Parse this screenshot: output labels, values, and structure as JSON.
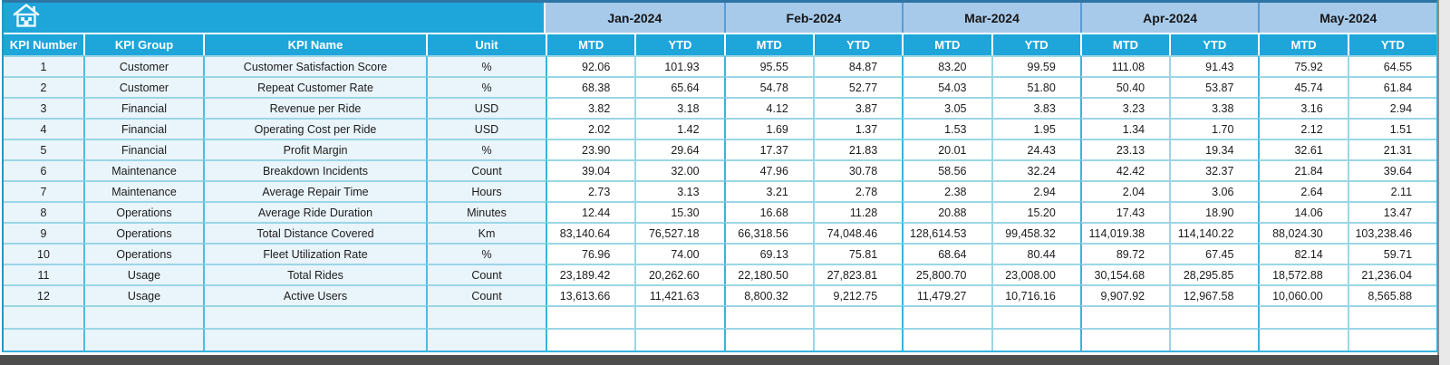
{
  "table": {
    "left_headers": [
      "KPI Number",
      "KPI Group",
      "KPI Name",
      "Unit"
    ],
    "months": [
      "Jan-2024",
      "Feb-2024",
      "Mar-2024",
      "Apr-2024",
      "May-2024"
    ],
    "sub_headers": [
      "MTD",
      "YTD"
    ],
    "rows": [
      {
        "number": "1",
        "group": "Customer",
        "name": "Customer Satisfaction Score",
        "unit": "%",
        "values": [
          "92.06",
          "101.93",
          "95.55",
          "84.87",
          "83.20",
          "99.59",
          "111.08",
          "91.43",
          "75.92",
          "64.55"
        ]
      },
      {
        "number": "2",
        "group": "Customer",
        "name": "Repeat Customer Rate",
        "unit": "%",
        "values": [
          "68.38",
          "65.64",
          "54.78",
          "52.77",
          "54.03",
          "51.80",
          "50.40",
          "53.87",
          "45.74",
          "61.84"
        ]
      },
      {
        "number": "3",
        "group": "Financial",
        "name": "Revenue per Ride",
        "unit": "USD",
        "values": [
          "3.82",
          "3.18",
          "4.12",
          "3.87",
          "3.05",
          "3.83",
          "3.23",
          "3.38",
          "3.16",
          "2.94"
        ]
      },
      {
        "number": "4",
        "group": "Financial",
        "name": "Operating Cost per Ride",
        "unit": "USD",
        "values": [
          "2.02",
          "1.42",
          "1.69",
          "1.37",
          "1.53",
          "1.95",
          "1.34",
          "1.70",
          "2.12",
          "1.51"
        ]
      },
      {
        "number": "5",
        "group": "Financial",
        "name": "Profit Margin",
        "unit": "%",
        "values": [
          "23.90",
          "29.64",
          "17.37",
          "21.83",
          "20.01",
          "24.43",
          "23.13",
          "19.34",
          "32.61",
          "21.31"
        ]
      },
      {
        "number": "6",
        "group": "Maintenance",
        "name": "Breakdown Incidents",
        "unit": "Count",
        "values": [
          "39.04",
          "32.00",
          "47.96",
          "30.78",
          "58.56",
          "32.24",
          "42.42",
          "32.37",
          "21.84",
          "39.64"
        ]
      },
      {
        "number": "7",
        "group": "Maintenance",
        "name": "Average Repair Time",
        "unit": "Hours",
        "values": [
          "2.73",
          "3.13",
          "3.21",
          "2.78",
          "2.38",
          "2.94",
          "2.04",
          "3.06",
          "2.64",
          "2.11"
        ]
      },
      {
        "number": "8",
        "group": "Operations",
        "name": "Average Ride Duration",
        "unit": "Minutes",
        "values": [
          "12.44",
          "15.30",
          "16.68",
          "11.28",
          "20.88",
          "15.20",
          "17.43",
          "18.90",
          "14.06",
          "13.47"
        ]
      },
      {
        "number": "9",
        "group": "Operations",
        "name": "Total Distance Covered",
        "unit": "Km",
        "values": [
          "83,140.64",
          "76,527.18",
          "66,318.56",
          "74,048.46",
          "128,614.53",
          "99,458.32",
          "114,019.38",
          "114,140.22",
          "88,024.30",
          "103,238.46"
        ]
      },
      {
        "number": "10",
        "group": "Operations",
        "name": "Fleet Utilization Rate",
        "unit": "%",
        "values": [
          "76.96",
          "74.00",
          "69.13",
          "75.81",
          "68.64",
          "80.44",
          "89.72",
          "67.45",
          "82.14",
          "59.71"
        ]
      },
      {
        "number": "11",
        "group": "Usage",
        "name": "Total Rides",
        "unit": "Count",
        "values": [
          "23,189.42",
          "20,262.60",
          "22,180.50",
          "27,823.81",
          "25,800.70",
          "23,008.00",
          "30,154.68",
          "28,295.85",
          "18,572.88",
          "21,236.04"
        ]
      },
      {
        "number": "12",
        "group": "Usage",
        "name": "Active Users",
        "unit": "Count",
        "values": [
          "13,613.66",
          "11,421.63",
          "8,800.32",
          "9,212.75",
          "11,479.27",
          "10,716.16",
          "9,907.92",
          "12,967.58",
          "10,060.00",
          "8,565.88"
        ]
      }
    ],
    "empty_rows": 2
  },
  "icons": {
    "home": "home-icon"
  },
  "colors": {
    "header_cyan": "#1EA5DA",
    "month_band": "#A7CAEA",
    "row_tint": "#E9F4FB",
    "grid_light": "#9AD6E6",
    "grid_strong": "#3AB3DE",
    "month_separator": "#5B9BD5",
    "bottom_bar": "#4D4D4D"
  }
}
